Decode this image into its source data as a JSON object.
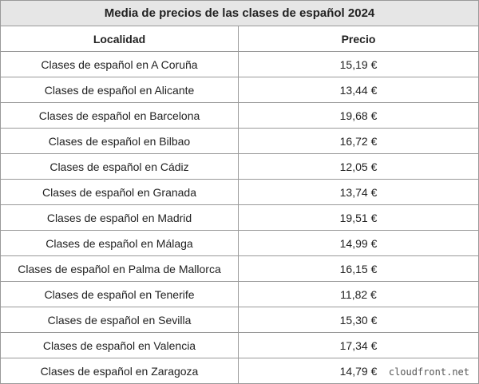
{
  "title": "Media de precios de las clases de español 2024",
  "table": {
    "header": [
      "Localidad",
      "Precio"
    ],
    "rows": [
      [
        "Clases de español en A Coruña",
        "15,19 €"
      ],
      [
        "Clases de español en Alicante",
        "13,44 €"
      ],
      [
        "Clases de español en Barcelona",
        "19,68 €"
      ],
      [
        "Clases de español en Bilbao",
        "16,72 €"
      ],
      [
        "Clases de español en Cádiz",
        "12,05 €"
      ],
      [
        "Clases de español en Granada",
        "13,74 €"
      ],
      [
        "Clases de español en Madrid",
        "19,51 €"
      ],
      [
        "Clases de español en Málaga",
        "14,99 €"
      ],
      [
        "Clases de español en Palma de Mallorca",
        "16,15 €"
      ],
      [
        "Clases de español en Tenerife",
        "11,82 €"
      ],
      [
        "Clases de español en Sevilla",
        "15,30 €"
      ],
      [
        "Clases de español en Valencia",
        "17,34 €"
      ],
      [
        "Clases de español en Zaragoza",
        "14,79 €"
      ]
    ]
  },
  "watermark": "cloudfront.net"
}
